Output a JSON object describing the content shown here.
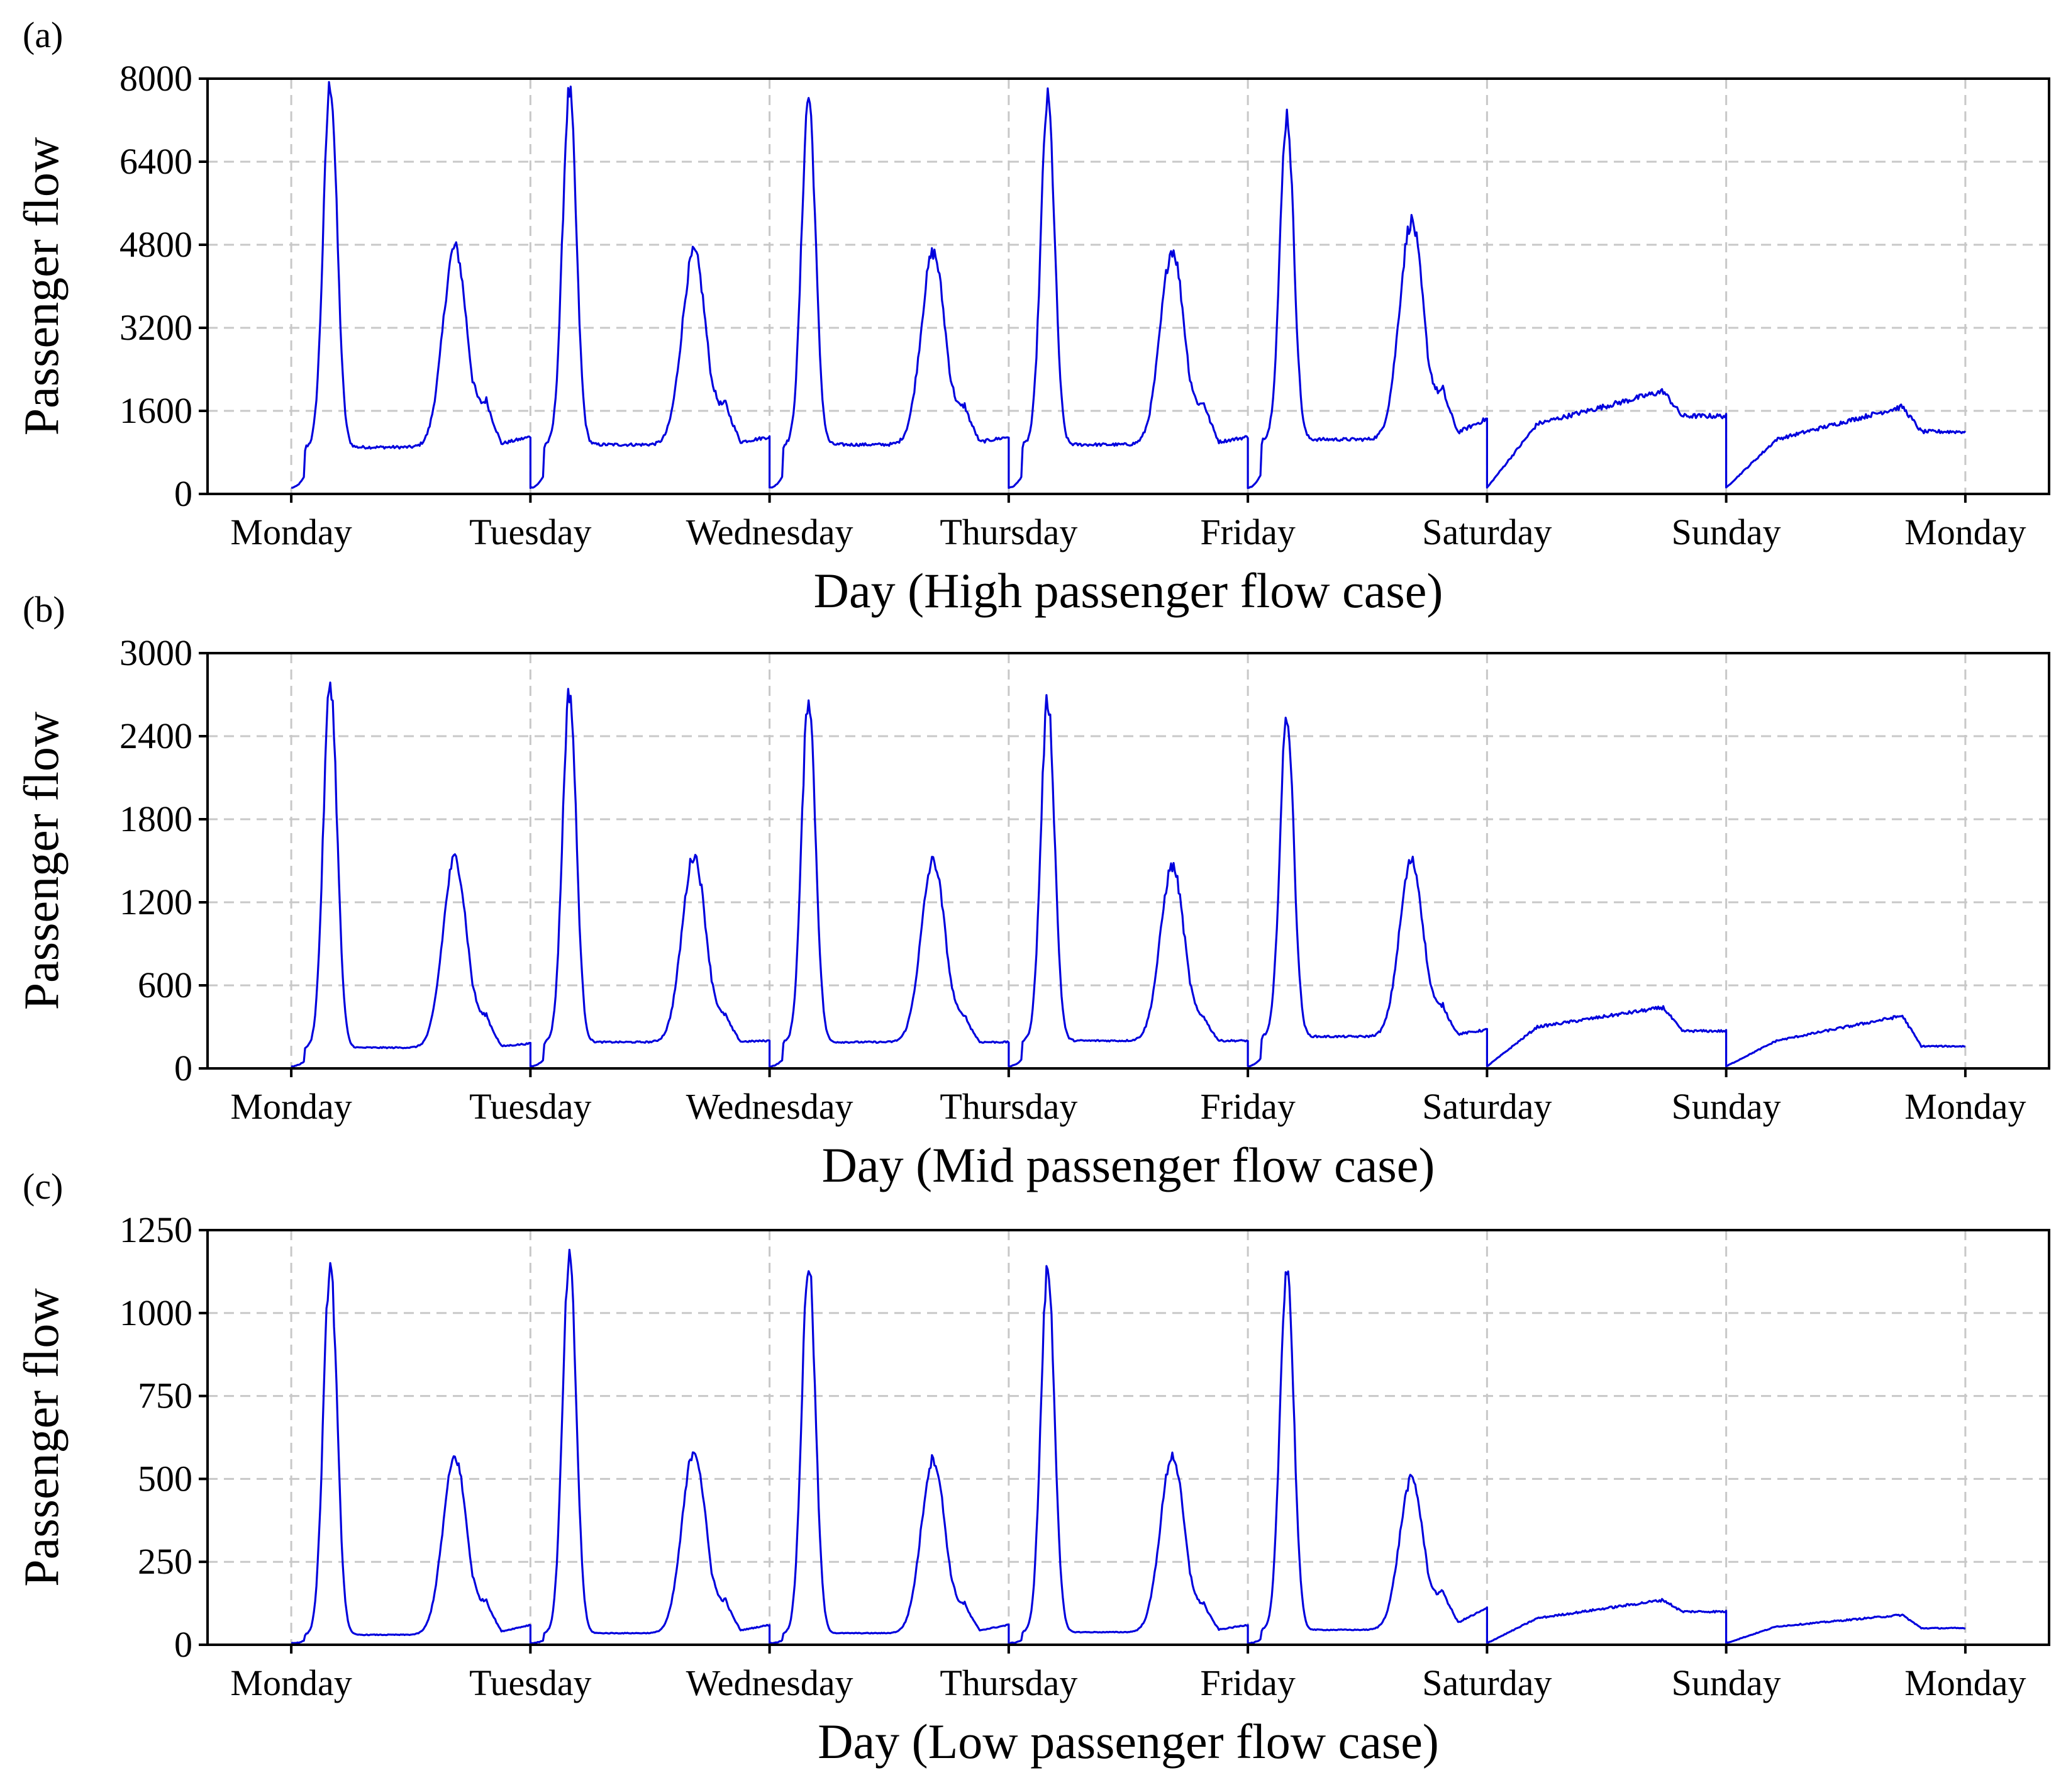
{
  "chart_data": [
    {
      "type": "line",
      "panel_label": "(a)",
      "xlabel": "Day (High passenger flow case)",
      "ylabel": "Passenger flow",
      "x_ticks": [
        "Monday",
        "Tuesday",
        "Wednesday",
        "Thursday",
        "Friday",
        "Saturday",
        "Sunday",
        "Monday"
      ],
      "x_range_days": [
        -0.35,
        7.35
      ],
      "y_ticks": [
        0,
        1600,
        3200,
        4800,
        6400,
        8000
      ],
      "ylim": [
        0,
        8000
      ],
      "grid": true,
      "series": [
        {
          "name": "Passenger flow",
          "color": "#0000dd",
          "weekday_profiles": [
            {
              "day": "Monday",
              "am_peak": 7900,
              "pm_peak": 4750,
              "midday": 900,
              "evening": 1700,
              "late": 1100
            },
            {
              "day": "Tuesday",
              "am_peak": 7750,
              "pm_peak": 4650,
              "midday": 950,
              "evening": 1650,
              "late": 1100
            },
            {
              "day": "Wednesday",
              "am_peak": 7650,
              "pm_peak": 4650,
              "midday": 950,
              "evening": 1600,
              "late": 1100
            },
            {
              "day": "Thursday",
              "am_peak": 7600,
              "pm_peak": 4700,
              "midday": 950,
              "evening": 1650,
              "late": 1100
            },
            {
              "day": "Friday",
              "am_peak": 7300,
              "pm_peak": 5250,
              "midday": 1050,
              "evening": 1900,
              "late": 1450
            }
          ],
          "weekend_profiles": [
            {
              "day": "Saturday",
              "morning": 1350,
              "afternoon_peak": 1980,
              "late": 1500
            },
            {
              "day": "Sunday",
              "morning": 1050,
              "afternoon_peak": 1680,
              "late": 1200
            }
          ],
          "night_min": 120
        }
      ]
    },
    {
      "type": "line",
      "panel_label": "(b)",
      "xlabel": "Day (Mid passenger flow case)",
      "ylabel": "Passenger flow",
      "x_ticks": [
        "Monday",
        "Tuesday",
        "Wednesday",
        "Thursday",
        "Friday",
        "Saturday",
        "Sunday",
        "Monday"
      ],
      "x_range_days": [
        -0.35,
        7.35
      ],
      "y_ticks": [
        0,
        600,
        1200,
        1800,
        2400,
        3000
      ],
      "ylim": [
        0,
        3000
      ],
      "grid": true,
      "series": [
        {
          "name": "Passenger flow",
          "color": "#0000dd",
          "weekday_profiles": [
            {
              "day": "Monday",
              "am_peak": 2790,
              "pm_peak": 1520,
              "midday": 150,
              "evening": 350,
              "late": 180
            },
            {
              "day": "Tuesday",
              "am_peak": 2720,
              "pm_peak": 1540,
              "midday": 190,
              "evening": 350,
              "late": 200
            },
            {
              "day": "Wednesday",
              "am_peak": 2680,
              "pm_peak": 1500,
              "midday": 190,
              "evening": 350,
              "late": 190
            },
            {
              "day": "Thursday",
              "am_peak": 2660,
              "pm_peak": 1460,
              "midday": 200,
              "evening": 340,
              "late": 200
            },
            {
              "day": "Friday",
              "am_peak": 2550,
              "pm_peak": 1500,
              "midday": 230,
              "evening": 420,
              "late": 280
            }
          ],
          "weekend_profiles": [
            {
              "day": "Saturday",
              "morning": 300,
              "afternoon_peak": 440,
              "late": 270
            },
            {
              "day": "Sunday",
              "morning": 200,
              "afternoon_peak": 380,
              "late": 160
            }
          ],
          "night_min": 15
        }
      ]
    },
    {
      "type": "line",
      "panel_label": "(c)",
      "xlabel": "Day (Low passenger flow case)",
      "ylabel": "Passenger flow",
      "x_ticks": [
        "Monday",
        "Tuesday",
        "Wednesday",
        "Thursday",
        "Friday",
        "Saturday",
        "Sunday",
        "Monday"
      ],
      "x_range_days": [
        -0.35,
        7.35
      ],
      "y_ticks": [
        0,
        250,
        500,
        750,
        1000,
        1250
      ],
      "ylim": [
        0,
        1250
      ],
      "grid": true,
      "series": [
        {
          "name": "Passenger flow",
          "color": "#0000dd",
          "weekday_profiles": [
            {
              "day": "Monday",
              "am_peak": 1140,
              "pm_peak": 565,
              "midday": 30,
              "evening": 120,
              "late": 60
            },
            {
              "day": "Tuesday",
              "am_peak": 1160,
              "pm_peak": 585,
              "midday": 35,
              "evening": 120,
              "late": 60
            },
            {
              "day": "Wednesday",
              "am_peak": 1150,
              "pm_peak": 560,
              "midday": 35,
              "evening": 110,
              "late": 60
            },
            {
              "day": "Thursday",
              "am_peak": 1130,
              "pm_peak": 570,
              "midday": 38,
              "evening": 110,
              "late": 60
            },
            {
              "day": "Friday",
              "am_peak": 1140,
              "pm_peak": 500,
              "midday": 45,
              "evening": 150,
              "late": 110
            }
          ],
          "weekend_profiles": [
            {
              "day": "Saturday",
              "morning": 80,
              "afternoon_peak": 135,
              "late": 100
            },
            {
              "day": "Sunday",
              "morning": 55,
              "afternoon_peak": 90,
              "late": 50
            }
          ],
          "night_min": 5
        }
      ]
    }
  ]
}
